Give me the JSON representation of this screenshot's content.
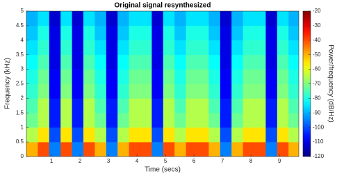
{
  "chart_data": {
    "type": "heatmap",
    "title": "Original signal resynthesized",
    "xlabel": "Time (secs)",
    "ylabel": "Frequency (kHz)",
    "colorbar_label": "Power/frequency (dB/Hz)",
    "colormap": "jet",
    "x": [
      0.32,
      0.72,
      1.12,
      1.52,
      1.92,
      2.32,
      2.72,
      3.12,
      3.52,
      3.92,
      4.32,
      4.72,
      5.12,
      5.52,
      5.92,
      6.32,
      6.72,
      7.12,
      7.52,
      7.92,
      8.32,
      8.72,
      9.12,
      9.52
    ],
    "y": [
      0.25,
      0.75,
      1.25,
      1.75,
      2.25,
      2.75,
      3.25,
      3.75,
      4.25,
      4.75
    ],
    "values": [
      [
        -50,
        -40,
        -95,
        -40,
        -95,
        -40,
        -50,
        -95,
        -50,
        -40,
        -40,
        -95,
        -40,
        -50,
        -40,
        -40,
        -50,
        -95,
        -50,
        -40,
        -40,
        -95,
        -40,
        -50
      ],
      [
        -65,
        -55,
        -100,
        -55,
        -100,
        -55,
        -65,
        -100,
        -65,
        -55,
        -55,
        -100,
        -55,
        -65,
        -55,
        -55,
        -65,
        -100,
        -65,
        -55,
        -55,
        -100,
        -55,
        -65
      ],
      [
        -72,
        -65,
        -105,
        -65,
        -105,
        -65,
        -72,
        -105,
        -72,
        -65,
        -65,
        -105,
        -65,
        -72,
        -65,
        -65,
        -72,
        -105,
        -72,
        -65,
        -65,
        -105,
        -65,
        -72
      ],
      [
        -75,
        -65,
        -105,
        -65,
        -105,
        -65,
        -75,
        -105,
        -75,
        -65,
        -65,
        -105,
        -65,
        -75,
        -65,
        -65,
        -75,
        -105,
        -75,
        -65,
        -65,
        -105,
        -65,
        -75
      ],
      [
        -78,
        -70,
        -108,
        -70,
        -108,
        -70,
        -78,
        -108,
        -78,
        -70,
        -70,
        -108,
        -70,
        -78,
        -70,
        -70,
        -78,
        -108,
        -78,
        -70,
        -70,
        -108,
        -70,
        -78
      ],
      [
        -80,
        -72,
        -108,
        -72,
        -108,
        -72,
        -80,
        -108,
        -80,
        -72,
        -72,
        -108,
        -72,
        -80,
        -72,
        -72,
        -80,
        -108,
        -80,
        -72,
        -72,
        -108,
        -72,
        -80
      ],
      [
        -82,
        -75,
        -110,
        -75,
        -110,
        -75,
        -82,
        -110,
        -82,
        -75,
        -75,
        -110,
        -75,
        -82,
        -75,
        -75,
        -82,
        -110,
        -82,
        -75,
        -75,
        -110,
        -75,
        -82
      ],
      [
        -85,
        -78,
        -110,
        -78,
        -110,
        -78,
        -85,
        -110,
        -85,
        -78,
        -78,
        -110,
        -78,
        -85,
        -78,
        -78,
        -85,
        -110,
        -85,
        -78,
        -78,
        -110,
        -78,
        -85
      ],
      [
        -88,
        -80,
        -110,
        -80,
        -110,
        -80,
        -88,
        -110,
        -88,
        -80,
        -80,
        -110,
        -80,
        -88,
        -80,
        -80,
        -88,
        -110,
        -88,
        -80,
        -80,
        -110,
        -80,
        -88
      ],
      [
        -90,
        -85,
        -112,
        -85,
        -112,
        -85,
        -90,
        -112,
        -90,
        -85,
        -85,
        -112,
        -85,
        -90,
        -85,
        -85,
        -90,
        -112,
        -90,
        -85,
        -85,
        -112,
        -85,
        -90
      ]
    ],
    "xlim": [
      0.12,
      9.68
    ],
    "xticks": [
      1,
      2,
      3,
      4,
      5,
      6,
      7,
      8,
      9
    ],
    "ylim": [
      0,
      5
    ],
    "yticks": [
      0,
      0.5,
      1,
      1.5,
      2,
      2.5,
      3,
      3.5,
      4,
      4.5,
      5
    ],
    "clim": [
      -120,
      -20
    ],
    "cticks": [
      -120,
      -110,
      -100,
      -90,
      -80,
      -70,
      -60,
      -50,
      -40,
      -30,
      -20
    ]
  }
}
